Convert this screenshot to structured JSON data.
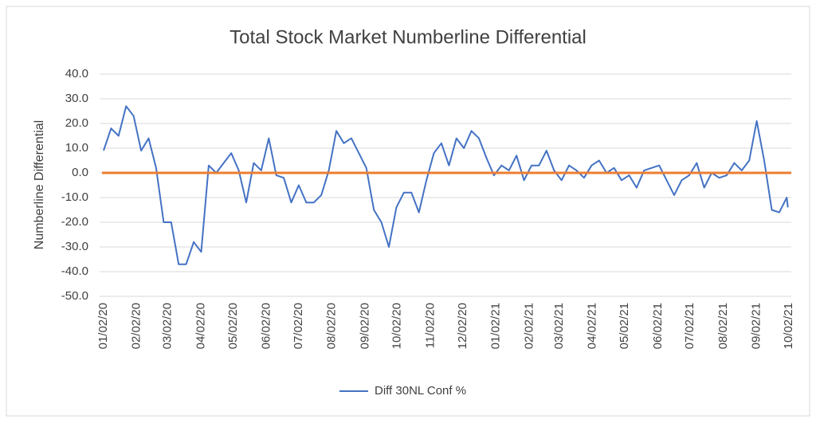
{
  "chart_data": {
    "type": "line",
    "title": "Total Stock Market Numberline Differential",
    "y_label": "Numberline Differential",
    "x": [
      "01/02/20",
      "01/09/20",
      "01/16/20",
      "01/23/20",
      "01/30/20",
      "02/06/20",
      "02/13/20",
      "02/20/20",
      "02/27/20",
      "03/05/20",
      "03/12/20",
      "03/19/20",
      "03/26/20",
      "04/02/20",
      "04/09/20",
      "04/16/20",
      "04/23/20",
      "04/30/20",
      "05/07/20",
      "05/14/20",
      "05/21/20",
      "05/28/20",
      "06/04/20",
      "06/11/20",
      "06/18/20",
      "06/25/20",
      "07/02/20",
      "07/09/20",
      "07/16/20",
      "07/23/20",
      "07/30/20",
      "08/06/20",
      "08/13/20",
      "08/20/20",
      "08/27/20",
      "09/03/20",
      "09/10/20",
      "09/17/20",
      "09/24/20",
      "10/01/20",
      "10/08/20",
      "10/15/20",
      "10/22/20",
      "10/29/20",
      "11/05/20",
      "11/12/20",
      "11/19/20",
      "11/26/20",
      "12/03/20",
      "12/10/20",
      "12/17/20",
      "12/24/20",
      "12/31/20",
      "01/07/21",
      "01/14/21",
      "01/21/21",
      "01/28/21",
      "02/04/21",
      "02/11/21",
      "02/18/21",
      "02/25/21",
      "03/04/21",
      "03/11/21",
      "03/18/21",
      "03/25/21",
      "04/01/21",
      "04/08/21",
      "04/15/21",
      "04/22/21",
      "04/29/21",
      "05/06/21",
      "05/13/21",
      "05/20/21",
      "05/27/21",
      "06/03/21",
      "06/10/21",
      "06/17/21",
      "06/24/21",
      "07/01/21",
      "07/08/21",
      "07/15/21",
      "07/22/21",
      "07/29/21",
      "08/05/21",
      "08/12/21",
      "08/19/21",
      "08/26/21",
      "09/02/21",
      "09/09/21",
      "09/16/21",
      "09/23/21",
      "09/30/21",
      "10/01/21"
    ],
    "series": [
      {
        "name": "Diff 30NL Conf %",
        "color": "#4472c4",
        "values": [
          9,
          18,
          15,
          27,
          23,
          9,
          14,
          2,
          -20,
          -20,
          -37,
          -37,
          -28,
          -32,
          3,
          0,
          4,
          8,
          1,
          -12,
          4,
          1,
          14,
          -1,
          -2,
          -12,
          -5,
          -12,
          -12,
          -9,
          1,
          17,
          12,
          14,
          8,
          2,
          -15,
          -20,
          -30,
          -14,
          -8,
          -8,
          -16,
          -3,
          8,
          12,
          3,
          14,
          10,
          17,
          14,
          6,
          -1,
          3,
          1,
          7,
          -3,
          3,
          3,
          9,
          1,
          -3,
          3,
          1,
          -2,
          3,
          5,
          0,
          2,
          -3,
          -1,
          -6,
          1,
          2,
          3,
          -3,
          -9,
          -3,
          -1,
          4,
          -6,
          0,
          -2,
          -1,
          4,
          1,
          5,
          21,
          5,
          -15,
          -16,
          -10,
          -14
        ]
      }
    ],
    "reference_line": {
      "value": 0,
      "color": "#ed7d31"
    },
    "xlim": [
      "01/02/20",
      "10/02/21"
    ],
    "xticks": [
      "01/02/20",
      "02/02/20",
      "03/02/20",
      "04/02/20",
      "05/02/20",
      "06/02/20",
      "07/02/20",
      "08/02/20",
      "09/02/20",
      "10/02/20",
      "11/02/20",
      "12/02/20",
      "01/02/21",
      "02/02/21",
      "03/02/21",
      "04/02/21",
      "05/02/21",
      "06/02/21",
      "07/02/21",
      "08/02/21",
      "09/02/21",
      "10/02/21"
    ],
    "ylim": [
      -50,
      40
    ],
    "yticks": [
      {
        "value": -50,
        "label": "-50.0"
      },
      {
        "value": -40,
        "label": "-40.0"
      },
      {
        "value": -30,
        "label": "-30.0"
      },
      {
        "value": -20,
        "label": "-20.0"
      },
      {
        "value": -10,
        "label": "-10.0"
      },
      {
        "value": 0,
        "label": "0.0"
      },
      {
        "value": 10,
        "label": "10.0"
      },
      {
        "value": 20,
        "label": "20.0"
      },
      {
        "value": 30,
        "label": "30.0"
      },
      {
        "value": 40,
        "label": "40.0"
      }
    ],
    "grid": true,
    "legend": "bottom"
  }
}
